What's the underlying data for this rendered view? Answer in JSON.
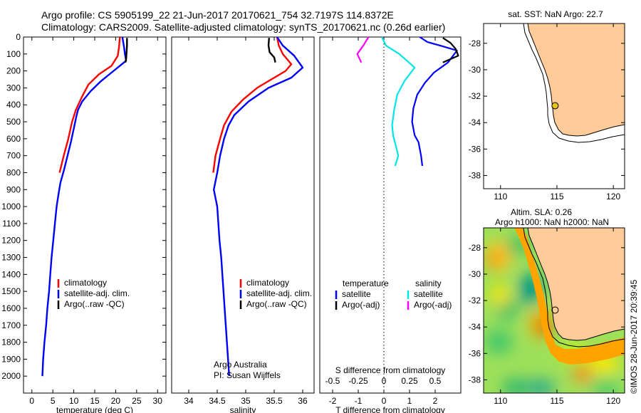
{
  "header": {
    "line1": "Argo profile: CS 5905199_22 21-Jun-2017 20170621_754 32.7197S 114.8372E",
    "line2": "Climatology: CARS2009. Satellite-adjusted climatology: synTS_20170621.nc (0.26d earlier)"
  },
  "colors": {
    "climatology": "#ff0000",
    "satellite": "#0000ff",
    "argo": "#000000",
    "sal_satellite": "#00e6e6",
    "sal_argo": "#ff00ff",
    "land": "#ffcc99"
  },
  "chart_data": [
    {
      "type": "line",
      "panel": "temperature",
      "xlabel": "temperature (deg C)",
      "xlim": [
        -2,
        32
      ],
      "ylim": [
        2100,
        0
      ],
      "xticks": [
        0,
        5,
        10,
        15,
        20,
        25,
        30
      ],
      "yticks": [
        0,
        100,
        200,
        300,
        400,
        500,
        600,
        700,
        800,
        900,
        1000,
        1100,
        1200,
        1300,
        1400,
        1500,
        1600,
        1700,
        1800,
        1900,
        2000
      ],
      "series": [
        {
          "name": "climatology",
          "color": "#ff0000",
          "points": [
            [
              21,
              0
            ],
            [
              20.8,
              60
            ],
            [
              20.5,
              110
            ],
            [
              19,
              170
            ],
            [
              16,
              220
            ],
            [
              13.5,
              280
            ],
            [
              12,
              350
            ],
            [
              10.5,
              430
            ],
            [
              9.6,
              500
            ],
            [
              8.7,
              600
            ],
            [
              7.6,
              700
            ],
            [
              6.6,
              800
            ]
          ]
        },
        {
          "name": "satellite-adj. clim.",
          "color": "#0000ff",
          "points": [
            [
              21.6,
              0
            ],
            [
              22,
              60
            ],
            [
              22.2,
              100
            ],
            [
              22.5,
              140
            ],
            [
              21.5,
              160
            ],
            [
              19,
              210
            ],
            [
              16.5,
              260
            ],
            [
              14,
              320
            ],
            [
              12,
              380
            ],
            [
              11,
              430
            ],
            [
              10.6,
              470
            ],
            [
              10,
              540
            ],
            [
              9.3,
              620
            ],
            [
              8.5,
              700
            ],
            [
              7.7,
              780
            ],
            [
              6.8,
              860
            ],
            [
              6.4,
              920
            ],
            [
              5.9,
              1000
            ],
            [
              5.5,
              1100
            ],
            [
              5.1,
              1200
            ],
            [
              4.7,
              1300
            ],
            [
              4.4,
              1400
            ],
            [
              4.1,
              1500
            ],
            [
              3.7,
              1600
            ],
            [
              3.4,
              1700
            ],
            [
              3,
              1800
            ],
            [
              2.7,
              1900
            ],
            [
              2.5,
              2000
            ]
          ]
        },
        {
          "name": "Argo(..raw -QC)",
          "color": "#000000",
          "points": [
            [
              22.7,
              5
            ],
            [
              22.7,
              50
            ],
            [
              22.6,
              90
            ],
            [
              22.5,
              130
            ],
            [
              22.3,
              150
            ]
          ]
        }
      ],
      "legend": {
        "location": "lower-center",
        "entries": [
          "climatology",
          "satellite-adj. clim.",
          "Argo(..raw -QC)"
        ]
      }
    },
    {
      "type": "line",
      "panel": "salinity",
      "xlabel": "salinity",
      "xlim": [
        33.7,
        36.2
      ],
      "ylim": [
        2100,
        0
      ],
      "xticks": [
        34,
        34.5,
        35,
        35.5,
        36
      ],
      "xticklabels": [
        "34",
        "34.5",
        "35",
        "35.5",
        "36"
      ],
      "series": [
        {
          "name": "climatology",
          "color": "#ff0000",
          "points": [
            [
              35.55,
              0
            ],
            [
              35.58,
              50
            ],
            [
              35.65,
              100
            ],
            [
              35.8,
              160
            ],
            [
              35.7,
              200
            ],
            [
              35.5,
              240
            ],
            [
              35.2,
              300
            ],
            [
              34.95,
              370
            ],
            [
              34.75,
              440
            ],
            [
              34.62,
              520
            ],
            [
              34.55,
              600
            ],
            [
              34.47,
              700
            ],
            [
              34.43,
              800
            ]
          ]
        },
        {
          "name": "satellite-adj. clim.",
          "color": "#0000ff",
          "points": [
            [
              35.55,
              0
            ],
            [
              35.65,
              50
            ],
            [
              35.85,
              110
            ],
            [
              36,
              180
            ],
            [
              35.8,
              240
            ],
            [
              35.4,
              300
            ],
            [
              35.05,
              380
            ],
            [
              34.8,
              460
            ],
            [
              34.7,
              520
            ],
            [
              34.62,
              600
            ],
            [
              34.55,
              700
            ],
            [
              34.5,
              800
            ],
            [
              34.44,
              900
            ],
            [
              34.5,
              1000
            ],
            [
              34.52,
              1100
            ],
            [
              34.54,
              1200
            ],
            [
              34.57,
              1300
            ],
            [
              34.59,
              1400
            ],
            [
              34.61,
              1500
            ],
            [
              34.63,
              1600
            ],
            [
              34.65,
              1700
            ],
            [
              34.67,
              1800
            ],
            [
              34.69,
              1900
            ],
            [
              34.71,
              2000
            ]
          ]
        },
        {
          "name": "Argo(..raw -QC)",
          "color": "#000000",
          "points": [
            [
              35.41,
              5
            ],
            [
              35.4,
              50
            ],
            [
              35.42,
              90
            ],
            [
              35.5,
              120
            ],
            [
              35.52,
              150
            ]
          ]
        }
      ],
      "legend": {
        "location": "lower-center",
        "entries": [
          "climatology",
          "satellite-adj. clim.",
          "Argo(..raw -QC)"
        ]
      },
      "annotation": [
        "Argo Australia",
        "PI: Susan Wijffels"
      ]
    },
    {
      "type": "line",
      "panel": "differences",
      "xlabel": "T difference from climatology",
      "top_label": "S difference from climatology",
      "xlim": [
        -2.5,
        3.0
      ],
      "ylim": [
        2100,
        0
      ],
      "xticks": [
        -2,
        -1,
        0,
        1,
        2
      ],
      "top_xticks": [
        -0.5,
        -0.25,
        0,
        0.25,
        0.5
      ],
      "zero_line": "dotted",
      "series": [
        {
          "name": "temperature satellite",
          "color": "#0000ff",
          "points": [
            [
              1.4,
              0
            ],
            [
              1.7,
              30
            ],
            [
              2.3,
              55
            ],
            [
              2.85,
              80
            ],
            [
              2.5,
              150
            ],
            [
              1.95,
              210
            ],
            [
              1.6,
              270
            ],
            [
              1.3,
              340
            ],
            [
              1.15,
              420
            ],
            [
              1.1,
              500
            ],
            [
              1.2,
              580
            ],
            [
              1.35,
              620
            ],
            [
              1.45,
              700
            ],
            [
              1.5,
              760
            ]
          ]
        },
        {
          "name": "temperature Argo(-adj)",
          "color": "#000000",
          "points": [
            [
              2.3,
              5
            ],
            [
              2.6,
              35
            ],
            [
              2.8,
              70
            ],
            [
              2.9,
              110
            ],
            [
              2.3,
              150
            ]
          ]
        },
        {
          "name": "salinity satellite",
          "color": "#00e6e6",
          "points": [
            [
              -0.02,
              0
            ],
            [
              0.02,
              50
            ],
            [
              0.15,
              100
            ],
            [
              0.3,
              180
            ],
            [
              0.2,
              260
            ],
            [
              0.13,
              340
            ],
            [
              0.1,
              430
            ],
            [
              0.08,
              520
            ],
            [
              0.09,
              580
            ],
            [
              0.12,
              650
            ],
            [
              0.14,
              700
            ],
            [
              0.11,
              760
            ]
          ]
        },
        {
          "name": "salinity Argo(-adj)",
          "color": "#ff00ff",
          "points": [
            [
              -0.15,
              0
            ],
            [
              -0.2,
              50
            ],
            [
              -0.26,
              100
            ],
            [
              -0.22,
              150
            ]
          ]
        }
      ],
      "legend": {
        "temperature_title": "temperature",
        "salinity_title": "salinity",
        "entries": [
          "satellite",
          "Argo(-adj)",
          "satellite",
          "Argo(-adj)"
        ]
      }
    },
    {
      "type": "map",
      "panel": "sst-map",
      "title": "sat. SST: NaN  Argo: 22.7",
      "xlim": [
        108.5,
        121
      ],
      "ylim": [
        -39,
        -26.5
      ],
      "xticks": [
        110,
        115,
        120
      ],
      "yticks": [
        -28,
        -30,
        -32,
        -34,
        -36,
        -38
      ],
      "argo_position": [
        114.8372,
        -32.7197
      ]
    },
    {
      "type": "heatmap",
      "panel": "sla-map",
      "title": [
        "Altim. SLA: 0.26",
        "Argo h1000: NaN  h2000: NaN"
      ],
      "xlim": [
        108.5,
        121
      ],
      "ylim": [
        -39,
        -26.5
      ],
      "xticks": [
        110,
        115,
        120
      ],
      "yticks": [
        -28,
        -30,
        -32,
        -34,
        -36,
        -38
      ],
      "argo_position": [
        114.8372,
        -32.7197
      ]
    }
  ],
  "side_text": "©IMOS 28-Jun-2017 20:39:45"
}
